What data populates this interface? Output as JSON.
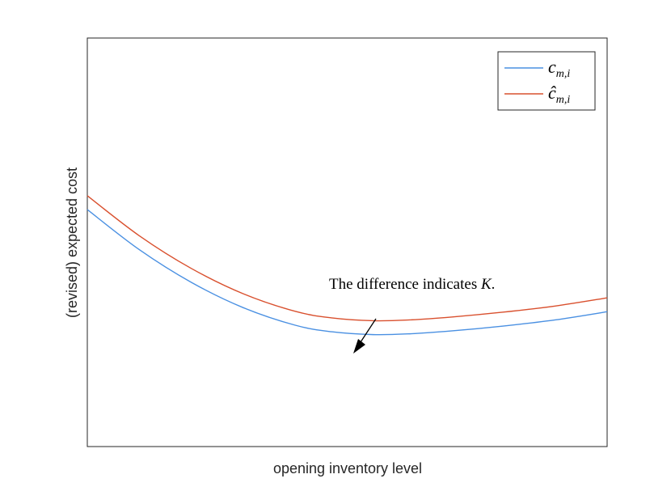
{
  "chart_data": {
    "type": "line",
    "xlabel": "opening inventory level",
    "ylabel": "(revised) expected cost",
    "xlim": [
      0,
      1
    ],
    "ylim": [
      0,
      1
    ],
    "grid": false,
    "legend_position": "top-right",
    "series": [
      {
        "name": "c_{m,i}",
        "legend_main": "c",
        "legend_sub": "m,i",
        "color": "#4a90e2",
        "x": [
          0.0,
          0.1,
          0.2,
          0.3,
          0.4,
          0.47,
          0.55,
          0.62,
          0.7,
          0.8,
          0.9,
          1.0
        ],
        "y": [
          0.58,
          0.482,
          0.402,
          0.34,
          0.297,
          0.281,
          0.274,
          0.276,
          0.283,
          0.295,
          0.31,
          0.33
        ]
      },
      {
        "name": "ĉ_{m,i}",
        "legend_main": "ĉ",
        "legend_sub": "m,i",
        "color": "#d9502e",
        "x": [
          0.0,
          0.1,
          0.2,
          0.3,
          0.4,
          0.47,
          0.55,
          0.62,
          0.7,
          0.8,
          0.9,
          1.0
        ],
        "y": [
          0.614,
          0.516,
          0.436,
          0.374,
          0.331,
          0.315,
          0.308,
          0.31,
          0.317,
          0.329,
          0.344,
          0.364
        ]
      }
    ],
    "annotation": {
      "text": "The difference indicates ",
      "symbol": "K",
      "suffix": ".",
      "arrow_tail": [
        0.555,
        0.32
      ],
      "arrow_head": [
        0.51,
        0.24
      ]
    }
  }
}
